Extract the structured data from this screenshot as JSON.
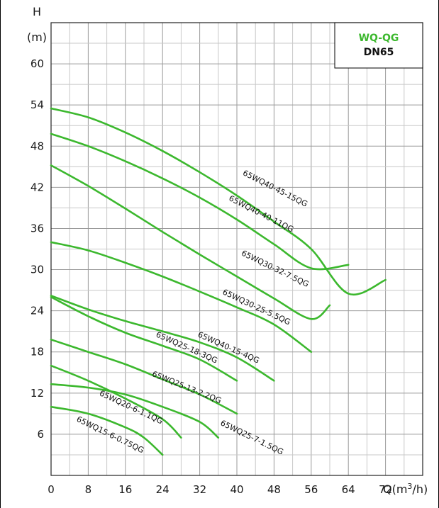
{
  "chart_data": {
    "type": "line",
    "xlabel": "Q(m",
    "xlabel_sup": "3",
    "xlabel_tail": "/h)",
    "ylabel_top": "H",
    "ylabel_unit": "(m)",
    "xlim": [
      0,
      80
    ],
    "ylim": [
      0,
      66
    ],
    "x_ticks": [
      0,
      8,
      16,
      24,
      32,
      40,
      48,
      56,
      64,
      72
    ],
    "y_ticks": [
      6,
      12,
      18,
      24,
      30,
      36,
      42,
      48,
      54,
      60
    ],
    "grid": true,
    "legend_box": {
      "title": "WQ-QG",
      "subtitle": "DN65",
      "title_color": "#3cb82e"
    },
    "series_color": "#3cb82e",
    "series": [
      {
        "name": "65WQ40-45-15QG",
        "points": [
          [
            0,
            53.5
          ],
          [
            8,
            52.2
          ],
          [
            16,
            50
          ],
          [
            24,
            47.3
          ],
          [
            32,
            44.2
          ],
          [
            40,
            40.8
          ],
          [
            48,
            37
          ],
          [
            56,
            33
          ],
          [
            64,
            26.5
          ],
          [
            72,
            28.5
          ]
        ]
      },
      {
        "name": "65WQ40-40-11QG",
        "points": [
          [
            0,
            49.8
          ],
          [
            8,
            48
          ],
          [
            16,
            45.8
          ],
          [
            24,
            43.3
          ],
          [
            32,
            40.5
          ],
          [
            40,
            37.3
          ],
          [
            48,
            33.7
          ],
          [
            56,
            30.2
          ],
          [
            64,
            30.7
          ]
        ]
      },
      {
        "name": "65WQ30-32-7.5QG",
        "points": [
          [
            0,
            45.2
          ],
          [
            8,
            42.2
          ],
          [
            16,
            38.9
          ],
          [
            24,
            35.5
          ],
          [
            32,
            32.2
          ],
          [
            40,
            29
          ],
          [
            48,
            25.8
          ],
          [
            56,
            22.8
          ],
          [
            60,
            24.8
          ]
        ]
      },
      {
        "name": "65WQ30-25-5.5QG",
        "points": [
          [
            0,
            34
          ],
          [
            8,
            32.8
          ],
          [
            16,
            31
          ],
          [
            24,
            29
          ],
          [
            32,
            26.8
          ],
          [
            40,
            24.5
          ],
          [
            48,
            22
          ],
          [
            56,
            18
          ]
        ]
      },
      {
        "name": "65WQ40-15-4QG",
        "points": [
          [
            0,
            26.2
          ],
          [
            8,
            24.2
          ],
          [
            16,
            22.5
          ],
          [
            24,
            21
          ],
          [
            32,
            19.4
          ],
          [
            40,
            17.2
          ],
          [
            48,
            13.8
          ]
        ]
      },
      {
        "name": "65WQ25-18-3QG",
        "points": [
          [
            0,
            26
          ],
          [
            8,
            23.2
          ],
          [
            16,
            20.8
          ],
          [
            24,
            18.9
          ],
          [
            32,
            16.9
          ],
          [
            40,
            13.8
          ]
        ]
      },
      {
        "name": "65WQ25-13-2.2QG",
        "points": [
          [
            0,
            19.8
          ],
          [
            8,
            18
          ],
          [
            16,
            16.2
          ],
          [
            24,
            14
          ],
          [
            32,
            11.8
          ],
          [
            40,
            9
          ]
        ]
      },
      {
        "name": "65WQ25-7-1.5QG",
        "points": [
          [
            0,
            13.3
          ],
          [
            8,
            12.8
          ],
          [
            16,
            11.8
          ],
          [
            24,
            10
          ],
          [
            32,
            7.8
          ],
          [
            36,
            5.5
          ]
        ]
      },
      {
        "name": "65WQ20-6-1.1QG",
        "points": [
          [
            0,
            16
          ],
          [
            8,
            13.8
          ],
          [
            16,
            11.2
          ],
          [
            24,
            8.2
          ],
          [
            28,
            5.5
          ]
        ]
      },
      {
        "name": "65WQ15-6-0.75QG",
        "points": [
          [
            0,
            10
          ],
          [
            8,
            9
          ],
          [
            16,
            7
          ],
          [
            20,
            5.5
          ],
          [
            24,
            3
          ]
        ]
      }
    ]
  }
}
